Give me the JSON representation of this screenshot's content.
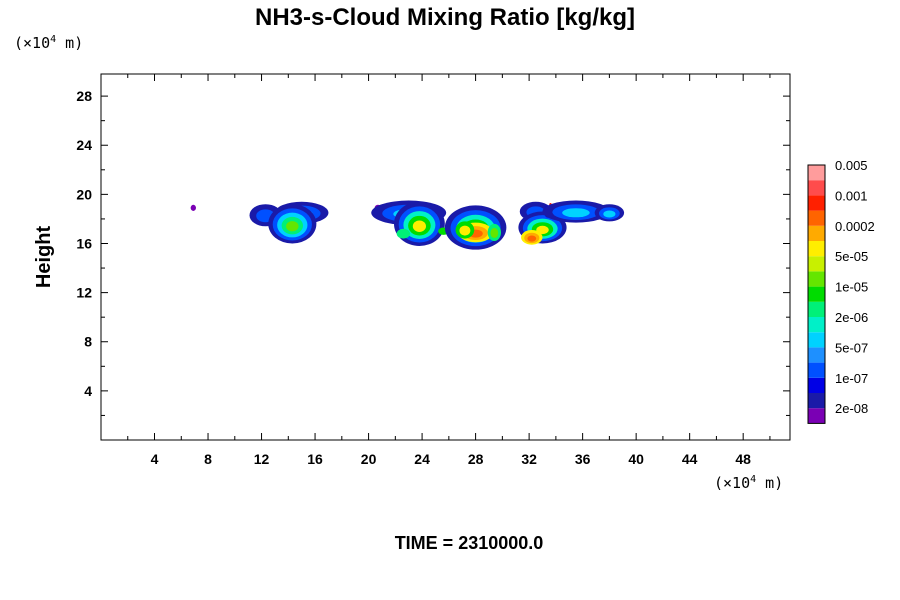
{
  "chart_data": {
    "type": "heatmap",
    "title": "NH3-s-Cloud Mixing Ratio [kg/kg]",
    "xlabel": "",
    "ylabel": "Height",
    "x_unit": {
      "prefix": "(×10",
      "exponent": "4",
      "suffix": " m)"
    },
    "y_unit": {
      "prefix": "(×10",
      "exponent": "4",
      "suffix": " m)"
    },
    "xlim": [
      0,
      51.5
    ],
    "ylim": [
      0,
      29.8
    ],
    "x_ticks": [
      4,
      8,
      12,
      16,
      20,
      24,
      28,
      32,
      36,
      40,
      44,
      48
    ],
    "y_ticks": [
      4,
      8,
      12,
      16,
      20,
      24,
      28
    ],
    "footer": "TIME = 2310000.0",
    "colorbar": {
      "colors": [
        "#7a00b4",
        "#1a1aa8",
        "#0000e6",
        "#0050ff",
        "#1e90ff",
        "#00d2ff",
        "#00f0c8",
        "#00f078",
        "#00dc00",
        "#64e600",
        "#c8f000",
        "#ffee00",
        "#ffaa00",
        "#ff6400",
        "#ff2000",
        "#ff4c4c",
        "#ff9c9c"
      ],
      "labels": [
        "2e-08",
        "1e-07",
        "5e-07",
        "2e-06",
        "1e-05",
        "5e-05",
        "0.0002",
        "0.001",
        "0.005"
      ]
    },
    "regions": [
      {
        "x": 6.9,
        "y": 18.9,
        "w": 0.2,
        "h": 0.25,
        "levels": [
          0
        ]
      },
      {
        "x": 12.3,
        "y": 18.3,
        "w": 1.2,
        "h": 0.9,
        "levels": [
          1,
          3
        ]
      },
      {
        "x": 15.0,
        "y": 18.5,
        "w": 2.0,
        "h": 0.9,
        "levels": [
          1,
          3,
          5
        ]
      },
      {
        "x": 14.3,
        "y": 17.6,
        "w": 1.8,
        "h": 1.6,
        "levels": [
          1,
          3,
          5,
          7,
          9
        ]
      },
      {
        "x": 20.7,
        "y": 18.9,
        "w": 0.25,
        "h": 0.25,
        "levels": [
          0
        ]
      },
      {
        "x": 23.0,
        "y": 18.5,
        "w": 2.8,
        "h": 1.0,
        "levels": [
          1,
          3,
          5
        ]
      },
      {
        "x": 23.8,
        "y": 17.6,
        "w": 1.9,
        "h": 1.8,
        "levels": [
          1,
          3,
          6,
          8,
          11
        ]
      },
      {
        "x": 22.6,
        "y": 16.8,
        "w": 0.5,
        "h": 0.4,
        "levels": [
          7
        ]
      },
      {
        "x": 25.6,
        "y": 17.0,
        "w": 0.4,
        "h": 0.3,
        "levels": [
          8
        ]
      },
      {
        "x": 28.0,
        "y": 17.3,
        "w": 2.3,
        "h": 1.8,
        "levels": [
          1,
          3,
          6,
          8,
          10
        ]
      },
      {
        "x": 28.0,
        "y": 16.9,
        "w": 1.3,
        "h": 0.8,
        "levels": [
          11,
          12,
          13
        ]
      },
      {
        "x": 27.2,
        "y": 17.1,
        "w": 0.7,
        "h": 0.7,
        "levels": [
          8,
          11
        ]
      },
      {
        "x": 29.4,
        "y": 16.9,
        "w": 0.5,
        "h": 0.7,
        "levels": [
          7,
          9
        ]
      },
      {
        "x": 32.5,
        "y": 18.6,
        "w": 1.2,
        "h": 0.8,
        "levels": [
          1,
          3
        ]
      },
      {
        "x": 33.0,
        "y": 17.3,
        "w": 1.8,
        "h": 1.3,
        "levels": [
          1,
          3,
          6,
          8,
          11
        ]
      },
      {
        "x": 32.2,
        "y": 16.5,
        "w": 0.8,
        "h": 0.6,
        "levels": [
          11,
          12,
          13
        ]
      },
      {
        "x": 33.4,
        "y": 18.6,
        "w": 0.3,
        "h": 0.5,
        "levels": [
          2
        ]
      },
      {
        "x": 33.6,
        "y": 19.1,
        "w": 0.1,
        "h": 0.2,
        "levels": [
          14
        ]
      },
      {
        "x": 35.5,
        "y": 18.6,
        "w": 2.5,
        "h": 0.9,
        "levels": [
          1,
          3,
          5
        ]
      },
      {
        "x": 38.0,
        "y": 18.5,
        "w": 1.1,
        "h": 0.7,
        "levels": [
          1,
          3,
          5
        ]
      }
    ]
  }
}
